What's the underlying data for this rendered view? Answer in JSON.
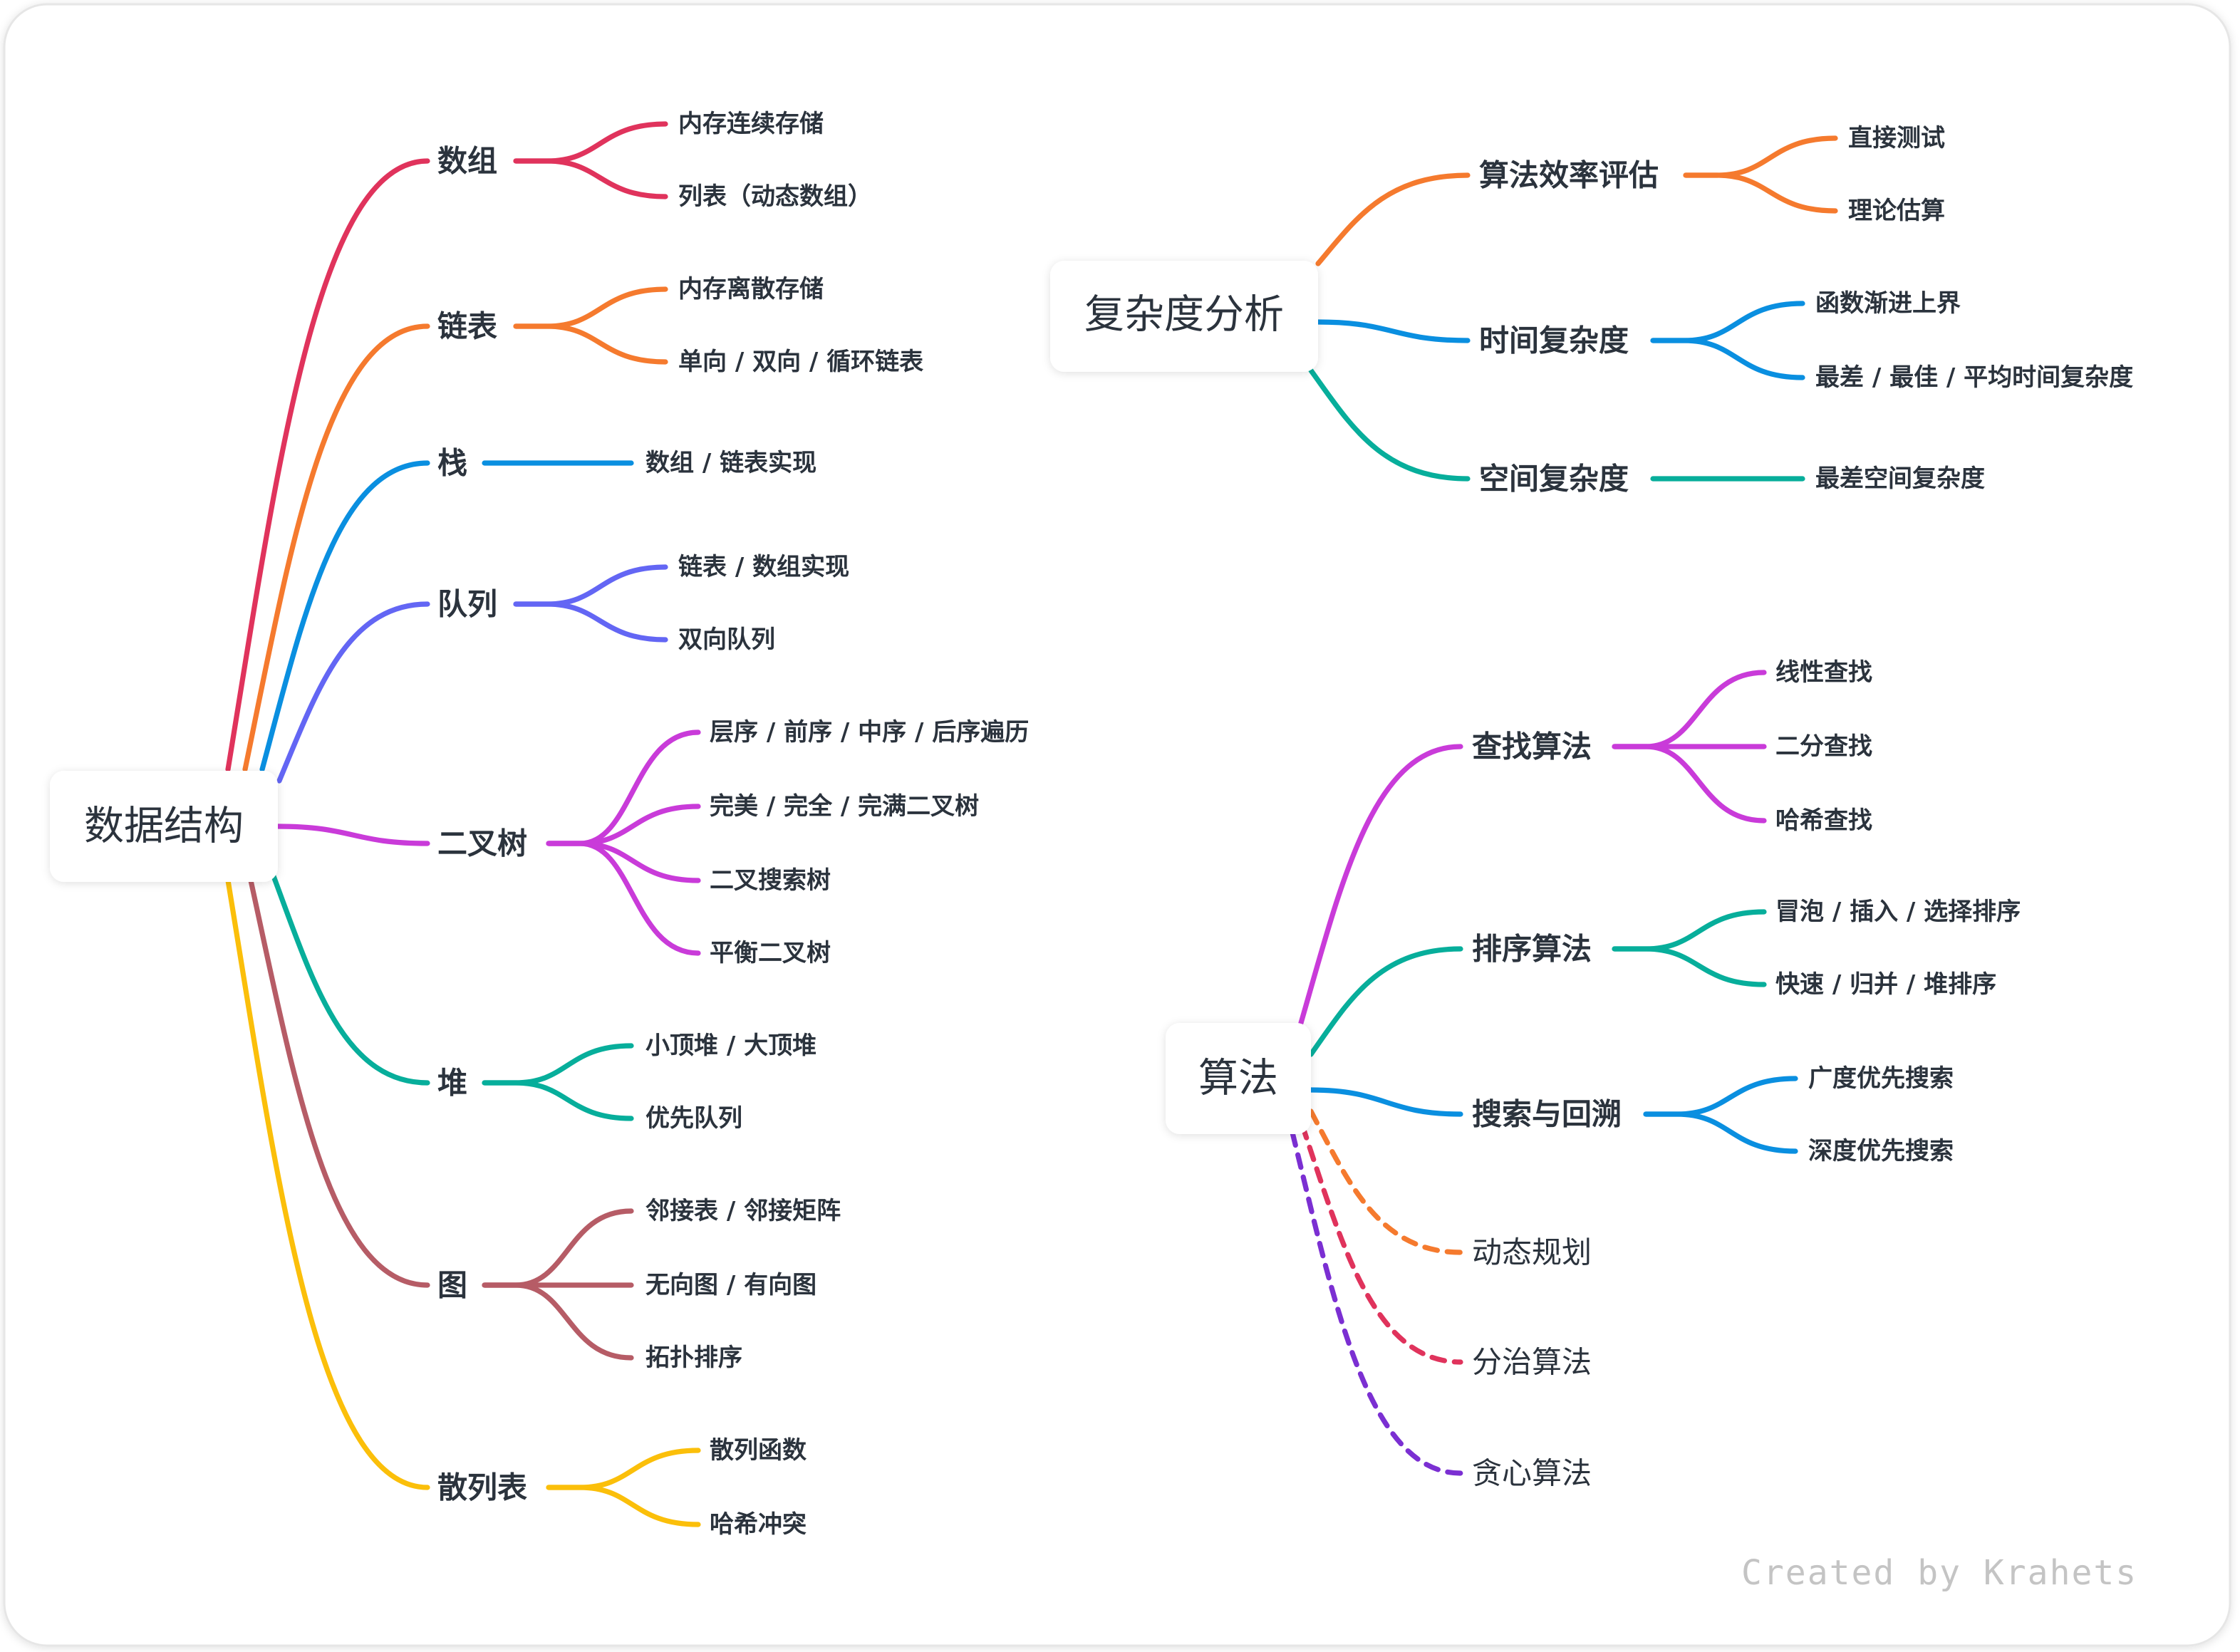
{
  "data_structures": {
    "root": "数据结构",
    "children": [
      {
        "label": "数组",
        "color": "#e0335c",
        "leaves": [
          "内存连续存储",
          "列表（动态数组）"
        ]
      },
      {
        "label": "链表",
        "color": "#f57a2e",
        "leaves": [
          "内存离散存储",
          "单向 / 双向 / 循环链表"
        ]
      },
      {
        "label": "栈",
        "color": "#0a8fe0",
        "leaves": [
          "数组 / 链表实现"
        ]
      },
      {
        "label": "队列",
        "color": "#6366f4",
        "leaves": [
          "链表 / 数组实现",
          "双向队列"
        ]
      },
      {
        "label": "二叉树",
        "color": "#c93bd9",
        "leaves": [
          "层序 / 前序 / 中序 / 后序遍历",
          "完美 / 完全 / 完满二叉树",
          "二叉搜索树",
          "平衡二叉树"
        ]
      },
      {
        "label": "堆",
        "color": "#07ae9b",
        "leaves": [
          "小顶堆 / 大顶堆",
          "优先队列"
        ]
      },
      {
        "label": "图",
        "color": "#b65c66",
        "leaves": [
          "邻接表 / 邻接矩阵",
          "无向图 / 有向图",
          "拓扑排序"
        ]
      },
      {
        "label": "散列表",
        "color": "#fbbf0a",
        "leaves": [
          "散列函数",
          "哈希冲突"
        ]
      }
    ]
  },
  "complexity": {
    "root": "复杂度分析",
    "children": [
      {
        "label": "算法效率评估",
        "color": "#f57a2e",
        "leaves": [
          "直接测试",
          "理论估算"
        ]
      },
      {
        "label": "时间复杂度",
        "color": "#0a8fe0",
        "leaves": [
          "函数渐进上界",
          "最差 / 最佳 / 平均时间复杂度"
        ]
      },
      {
        "label": "空间复杂度",
        "color": "#07ae9b",
        "leaves": [
          "最差空间复杂度"
        ]
      }
    ]
  },
  "algorithms": {
    "root": "算法",
    "children": [
      {
        "label": "查找算法",
        "color": "#c93bd9",
        "leaves": [
          "线性查找",
          "二分查找",
          "哈希查找"
        ]
      },
      {
        "label": "排序算法",
        "color": "#07ae9b",
        "leaves": [
          "冒泡 / 插入 / 选择排序",
          "快速 / 归并 / 堆排序"
        ]
      },
      {
        "label": "搜索与回溯",
        "color": "#0a8fe0",
        "leaves": [
          "广度优先搜索",
          "深度优先搜索"
        ]
      },
      {
        "label": "动态规划",
        "color": "#f57a2e",
        "dashed": true,
        "leaves": []
      },
      {
        "label": "分治算法",
        "color": "#e0335c",
        "dashed": true,
        "leaves": []
      },
      {
        "label": "贪心算法",
        "color": "#7b2fd2",
        "dashed": true,
        "leaves": []
      }
    ]
  },
  "watermark": "Created by Krahets"
}
